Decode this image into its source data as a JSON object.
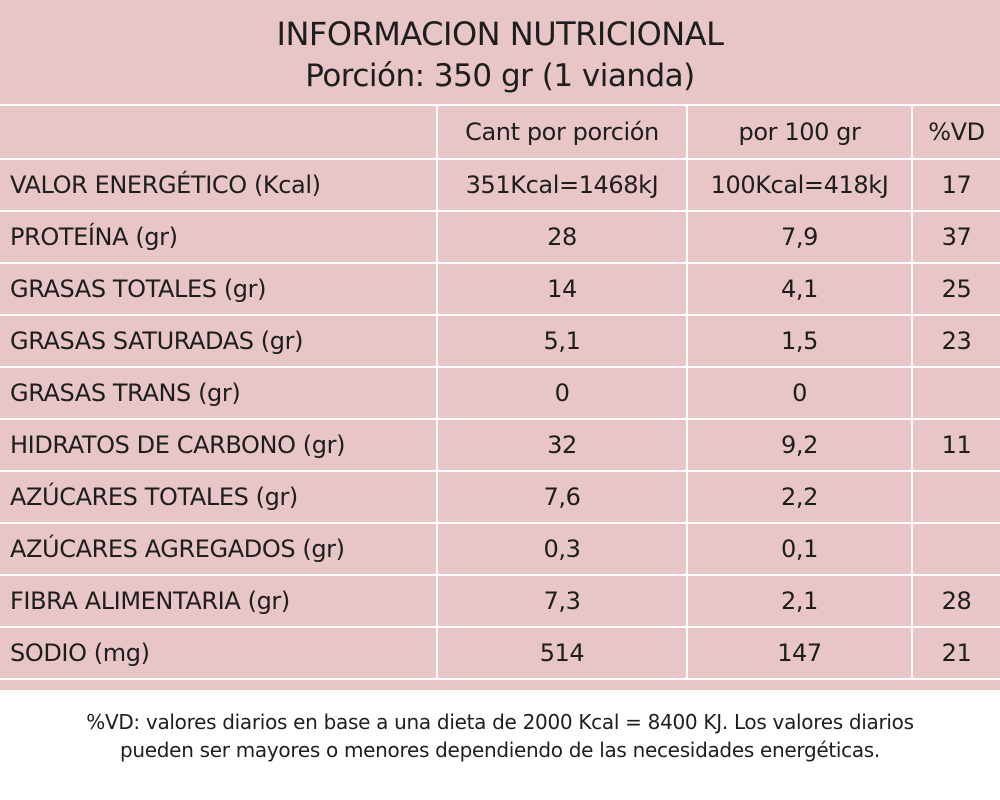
{
  "title": "INFORMACION NUTRICIONAL",
  "subtitle": "Porción: 350 gr (1 vianda)",
  "columns": {
    "per_portion": "Cant por porción",
    "per_100": "por 100 gr",
    "dv": "%VD"
  },
  "rows": [
    {
      "label": "VALOR ENERGÉTICO  (Kcal)",
      "per_portion": "351Kcal=1468kJ",
      "per_100": "100Kcal=418kJ",
      "dv": "17"
    },
    {
      "label": "PROTEÍNA (gr)",
      "per_portion": "28",
      "per_100": "7,9",
      "dv": "37"
    },
    {
      "label": "GRASAS TOTALES (gr)",
      "per_portion": "14",
      "per_100": "4,1",
      "dv": "25"
    },
    {
      "label": "GRASAS SATURADAS (gr)",
      "per_portion": "5,1",
      "per_100": "1,5",
      "dv": "23"
    },
    {
      "label": "GRASAS TRANS (gr)",
      "per_portion": "0",
      "per_100": "0",
      "dv": ""
    },
    {
      "label": "HIDRATOS DE CARBONO (gr)",
      "per_portion": "32",
      "per_100": "9,2",
      "dv": "11"
    },
    {
      "label": "AZÚCARES TOTALES (gr)",
      "per_portion": "7,6",
      "per_100": "2,2",
      "dv": ""
    },
    {
      "label": "AZÚCARES AGREGADOS (gr)",
      "per_portion": "0,3",
      "per_100": "0,1",
      "dv": ""
    },
    {
      "label": "FIBRA ALIMENTARIA (gr)",
      "per_portion": "7,3",
      "per_100": "2,1",
      "dv": "28"
    },
    {
      "label": "SODIO (mg)",
      "per_portion": "514",
      "per_100": "147",
      "dv": "21"
    }
  ],
  "footnote": {
    "line1": "%VD:  valores diarios en base a una dieta de 2000 Kcal = 8400 KJ. Los valores diarios",
    "line2": "pueden ser mayores o menores dependiendo de las necesidades energéticas."
  },
  "colors": {
    "panel_background": "#e8c5c6",
    "grid_lines": "#ffffff",
    "text": "#1e1e1e"
  }
}
